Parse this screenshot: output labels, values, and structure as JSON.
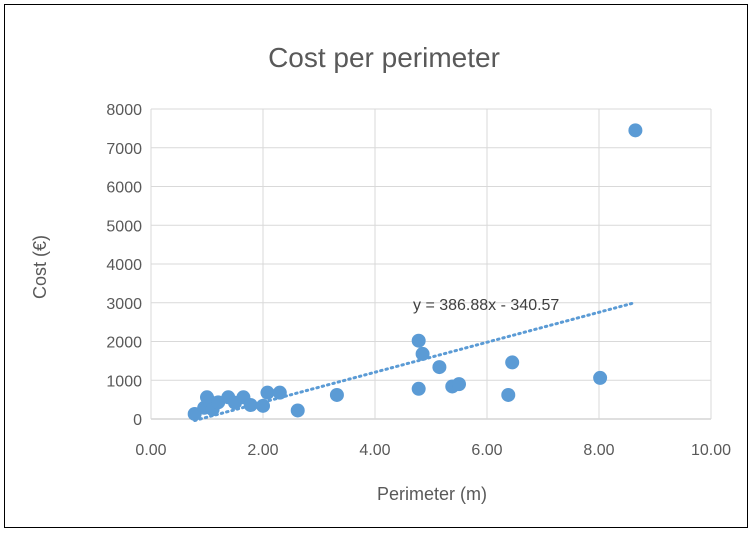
{
  "chart_data": {
    "type": "scatter",
    "title": "Cost per perimeter",
    "xlabel": "Perimeter (m)",
    "ylabel": "Cost (€)",
    "xlim": [
      0,
      10
    ],
    "ylim": [
      0,
      8000
    ],
    "x_ticks": [
      "0.00",
      "2.00",
      "4.00",
      "6.00",
      "8.00",
      "10.00"
    ],
    "y_ticks": [
      "0",
      "1000",
      "2000",
      "3000",
      "4000",
      "5000",
      "6000",
      "7000",
      "8000"
    ],
    "grid": true,
    "legend": "none",
    "marker_color": "#5B9BD5",
    "series": [
      {
        "points": [
          [
            0.78,
            130
          ],
          [
            0.95,
            290
          ],
          [
            1.0,
            560
          ],
          [
            1.05,
            450
          ],
          [
            1.1,
            250
          ],
          [
            1.2,
            430
          ],
          [
            1.38,
            560
          ],
          [
            1.5,
            420
          ],
          [
            1.65,
            560
          ],
          [
            1.78,
            360
          ],
          [
            2.0,
            340
          ],
          [
            2.08,
            680
          ],
          [
            2.3,
            680
          ],
          [
            2.62,
            220
          ],
          [
            3.32,
            620
          ],
          [
            4.78,
            2020
          ],
          [
            4.85,
            1680
          ],
          [
            4.78,
            780
          ],
          [
            5.15,
            1340
          ],
          [
            5.38,
            840
          ],
          [
            5.5,
            900
          ],
          [
            6.38,
            620
          ],
          [
            6.45,
            1460
          ],
          [
            8.02,
            1060
          ],
          [
            8.65,
            7450
          ]
        ]
      }
    ],
    "trendline": {
      "type": "linear",
      "style": "dotted",
      "equation": "y = 386.88x - 340.57",
      "slope": 386.88,
      "intercept": -340.57,
      "x_range": [
        0.78,
        8.65
      ]
    }
  }
}
